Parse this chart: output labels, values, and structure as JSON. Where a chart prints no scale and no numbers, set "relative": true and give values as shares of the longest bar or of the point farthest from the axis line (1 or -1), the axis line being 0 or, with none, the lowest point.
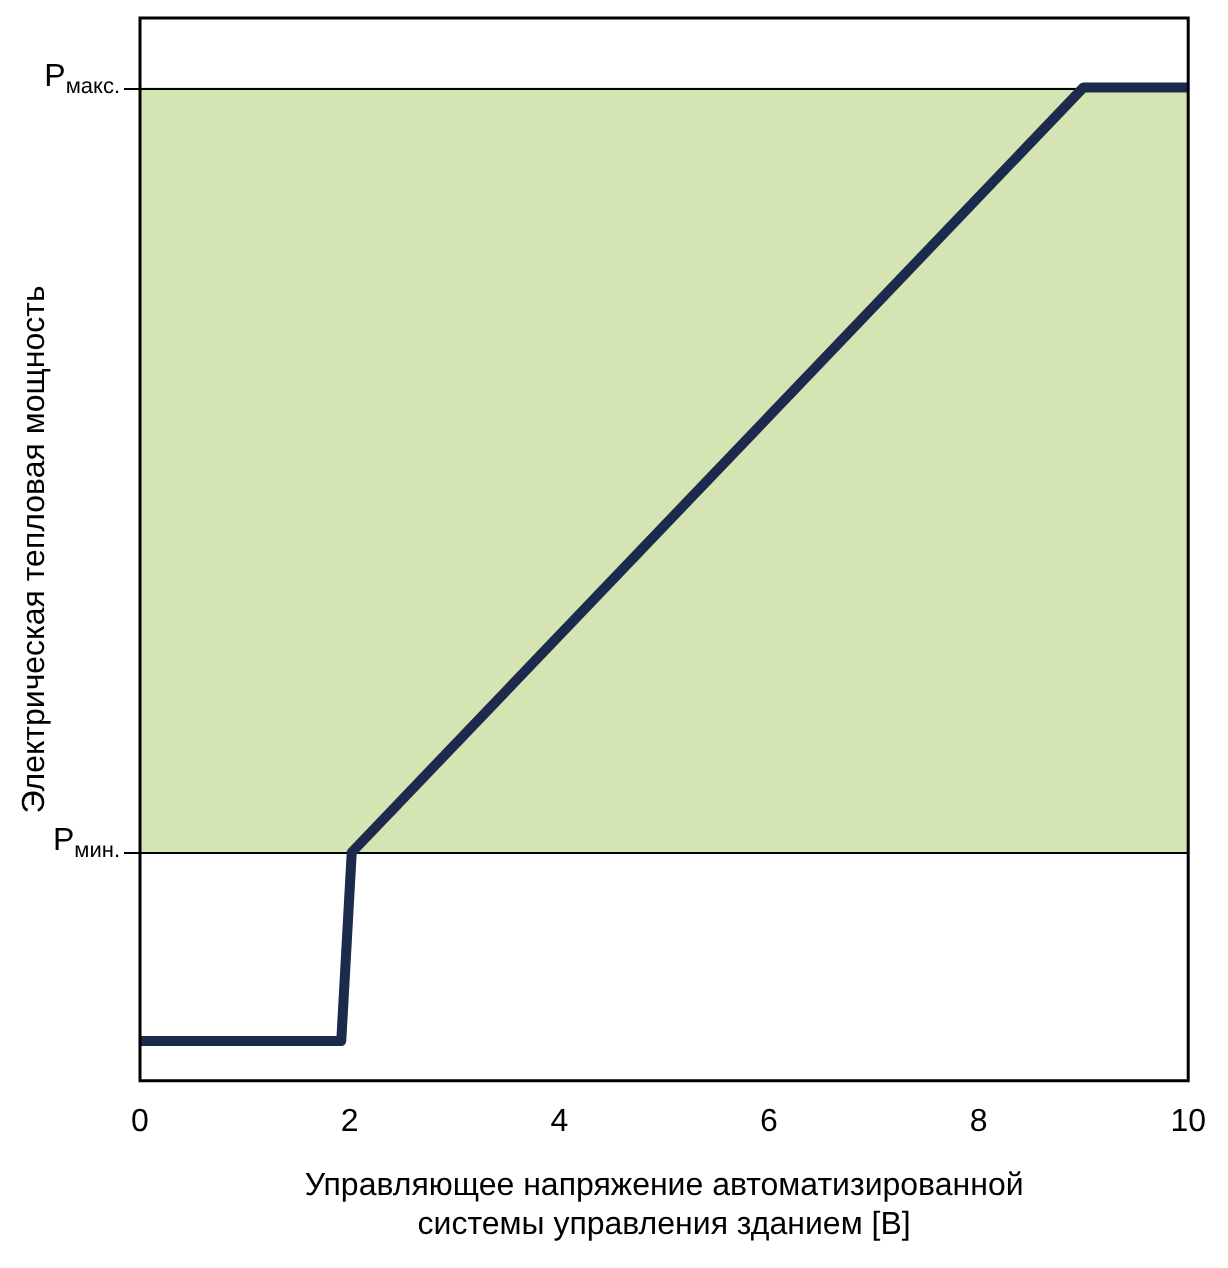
{
  "chart_data": {
    "type": "line",
    "xlabel": "Управляющее напряжение автоматизированной системы управления зданием [B]",
    "ylabel": "Электрическая тепловая мощность",
    "relative": true,
    "x": [
      0,
      1.92,
      2.02,
      9,
      10
    ],
    "series": [
      {
        "color": "#1c2a4d",
        "values": [
          0.04,
          0.04,
          0.23,
          1,
          1
        ]
      }
    ],
    "xlim": [
      0,
      10
    ],
    "xticks": [
      0,
      2,
      4,
      6,
      8,
      10
    ],
    "ref_lines": [
      {
        "axis": "y",
        "value": 1,
        "label": "P$_{макс.}$",
        "color": "#000000"
      },
      {
        "axis": "y",
        "value": 0.23,
        "label": "P$_{мин.}$",
        "color": "#000000"
      }
    ],
    "bands": [
      {
        "axis": "y",
        "from": 0.23,
        "to": 1,
        "color": "#d5e4b3"
      }
    ],
    "grid": false,
    "legend": false,
    "marker": "none",
    "line_style": "solid"
  }
}
